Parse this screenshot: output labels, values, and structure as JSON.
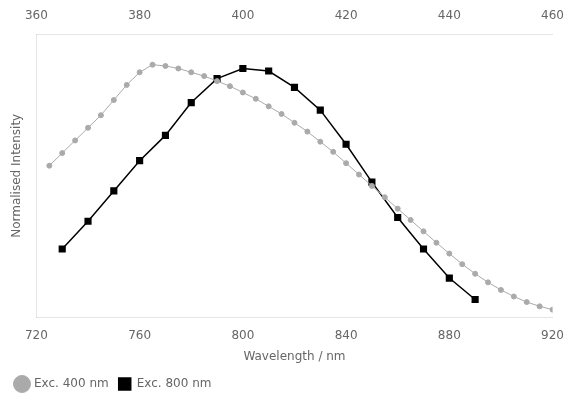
{
  "chart_data": {
    "type": "line",
    "xlabel": "Wavelength / nm",
    "ylabel": "Normalised Intensity",
    "series": [
      {
        "name": "Exc. 400 nm",
        "color": "#aaaaaa",
        "marker": "circle",
        "x": [
          725,
          730,
          735,
          740,
          745,
          750,
          755,
          760,
          765,
          770,
          775,
          780,
          785,
          790,
          795,
          800,
          805,
          810,
          815,
          820,
          825,
          830,
          835,
          840,
          845,
          850,
          855,
          860,
          865,
          870,
          875,
          880,
          885,
          890,
          895,
          900,
          905,
          910,
          915,
          920
        ],
        "values": [
          0.6,
          0.65,
          0.7,
          0.75,
          0.8,
          0.86,
          0.92,
          0.97,
          1.0,
          0.995,
          0.985,
          0.97,
          0.955,
          0.935,
          0.915,
          0.89,
          0.865,
          0.835,
          0.805,
          0.77,
          0.735,
          0.695,
          0.655,
          0.61,
          0.565,
          0.52,
          0.475,
          0.43,
          0.385,
          0.34,
          0.295,
          0.252,
          0.21,
          0.172,
          0.138,
          0.108,
          0.082,
          0.06,
          0.043,
          0.03
        ]
      },
      {
        "name": "Exc. 800 nm",
        "color": "#000000",
        "marker": "square",
        "x": [
          730,
          740,
          750,
          760,
          770,
          780,
          790,
          800,
          810,
          820,
          830,
          840,
          850,
          860,
          870,
          880,
          890
        ],
        "values": [
          0.27,
          0.38,
          0.5,
          0.62,
          0.72,
          0.85,
          0.945,
          0.985,
          0.975,
          0.91,
          0.82,
          0.685,
          0.535,
          0.395,
          0.27,
          0.155,
          0.07
        ]
      }
    ],
    "xlim": [
      720,
      920
    ],
    "xticks": [
      720,
      760,
      800,
      840,
      880,
      920
    ],
    "x2lim": [
      360,
      460
    ],
    "x2ticks": [
      360,
      380,
      400,
      420,
      440,
      460
    ],
    "ylim": [
      0,
      1.12
    ],
    "tick_labels": "x",
    "grid": false,
    "legend": "lower left"
  }
}
